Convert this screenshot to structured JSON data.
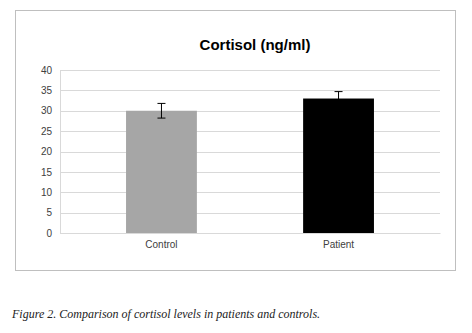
{
  "chart_data": {
    "type": "bar",
    "title": "Cortisol (ng/ml)",
    "categories": [
      "Control",
      "Patient"
    ],
    "values": [
      30,
      33
    ],
    "error": [
      1.8,
      1.7
    ],
    "colors": [
      "#a6a6a6",
      "#000000"
    ],
    "ylim": [
      0,
      40
    ],
    "yticks": [
      0,
      5,
      10,
      15,
      20,
      25,
      30,
      35,
      40
    ],
    "grid": true,
    "caption": "Figure 2. Comparison of cortisol levels in patients and controls."
  }
}
